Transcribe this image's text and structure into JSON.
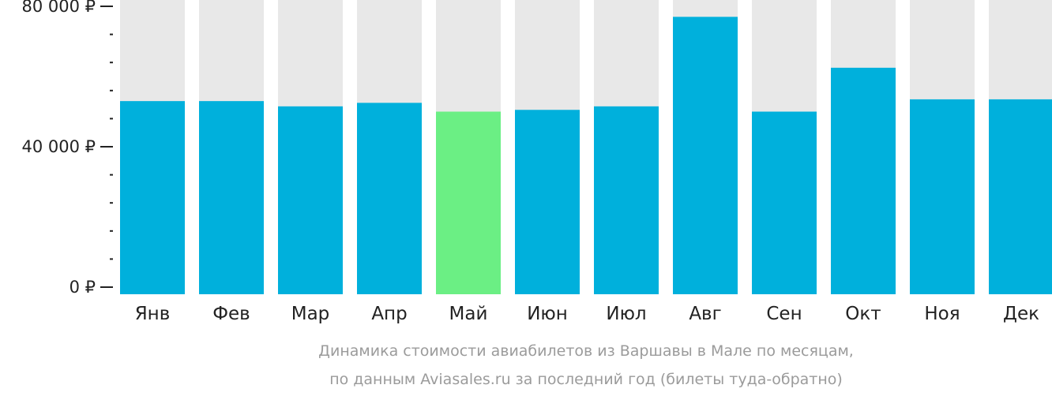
{
  "chart_data": {
    "type": "bar",
    "categories": [
      "Янв",
      "Фев",
      "Мар",
      "Апр",
      "Май",
      "Июн",
      "Июл",
      "Авг",
      "Сен",
      "Окт",
      "Ноя",
      "Дек"
    ],
    "values": [
      53000,
      53000,
      51500,
      52500,
      50000,
      50500,
      51500,
      77000,
      50000,
      62500,
      53500,
      53500
    ],
    "highlight_index": 4,
    "ylim": [
      0,
      82000
    ],
    "yticks": [
      {
        "value": 0,
        "label": "0 ₽"
      },
      {
        "value": 40000,
        "label": "40 000 ₽"
      },
      {
        "value": 80000,
        "label": "80 000 ₽"
      }
    ],
    "minor_tick_step": 8000,
    "caption_line1": "Динамика стоимости авиабилетов из Варшавы в Мале по месяцам,",
    "caption_line2": "по данным Aviasales.ru за последний год (билеты туда-обратно)",
    "colors": {
      "bar": "#00b0dc",
      "highlight": "#6bef84",
      "background_bar": "#e8e8e8",
      "axis": "#222222",
      "caption": "#9b9b9b"
    }
  }
}
